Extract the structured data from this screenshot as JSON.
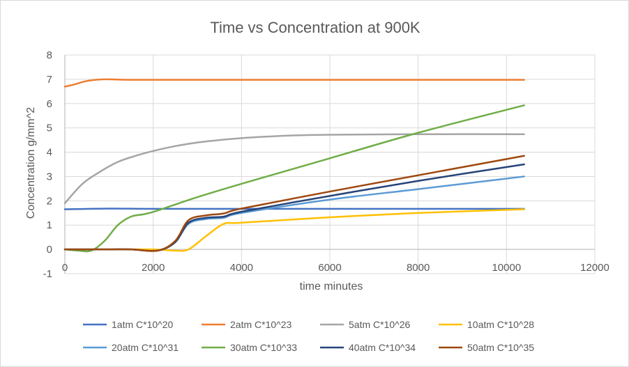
{
  "chart_data": {
    "type": "line",
    "title": "Time vs Concentration at 900K",
    "xlabel": "time minutes",
    "ylabel": "Concentration g/mm^2",
    "xlim": [
      0,
      12000
    ],
    "ylim": [
      -1,
      8
    ],
    "xticks": [
      0,
      2000,
      4000,
      6000,
      8000,
      10000,
      12000
    ],
    "yticks": [
      -1,
      0,
      1,
      2,
      3,
      4,
      5,
      6,
      7,
      8
    ],
    "grid": true,
    "legend_position": "bottom",
    "series": [
      {
        "name": "1atm C*10^20",
        "color": "#4472C4",
        "x": [
          0,
          1000,
          2000,
          4000,
          6000,
          8000,
          10400
        ],
        "y": [
          1.65,
          1.68,
          1.67,
          1.67,
          1.67,
          1.67,
          1.67
        ]
      },
      {
        "name": "2atm C*10^23",
        "color": "#ED7D31",
        "x": [
          0,
          200,
          500,
          900,
          1500,
          3000,
          6000,
          10400
        ],
        "y": [
          6.7,
          6.78,
          6.93,
          7.0,
          6.98,
          6.98,
          6.98,
          6.98
        ]
      },
      {
        "name": "5atm C*10^26",
        "color": "#A5A5A5",
        "x": [
          0,
          400,
          800,
          1200,
          1600,
          2000,
          2500,
          3000,
          3500,
          4000,
          5000,
          6000,
          8000,
          10400
        ],
        "y": [
          1.9,
          2.7,
          3.2,
          3.6,
          3.85,
          4.05,
          4.25,
          4.4,
          4.5,
          4.58,
          4.68,
          4.72,
          4.74,
          4.74
        ]
      },
      {
        "name": "10atm C*10^28",
        "color": "#FFC000",
        "x": [
          0,
          1000,
          2000,
          2500,
          2800,
          3200,
          3600,
          4000,
          6000,
          8000,
          10400
        ],
        "y": [
          0.0,
          0.0,
          0.0,
          -0.05,
          0.0,
          0.55,
          1.05,
          1.1,
          1.32,
          1.5,
          1.65
        ]
      },
      {
        "name": "20atm C*10^31",
        "color": "#5B9BD5",
        "x": [
          0,
          1000,
          1500,
          2100,
          2500,
          2800,
          3200,
          3600,
          4000,
          6000,
          8000,
          10400
        ],
        "y": [
          0.0,
          0.0,
          0.0,
          -0.05,
          0.3,
          1.05,
          1.25,
          1.3,
          1.5,
          2.05,
          2.48,
          3.0
        ]
      },
      {
        "name": "30atm C*10^33",
        "color": "#70AD47",
        "x": [
          0,
          300,
          600,
          900,
          1200,
          1500,
          1800,
          2100,
          3000,
          4000,
          6000,
          8000,
          10400
        ],
        "y": [
          0.0,
          -0.05,
          -0.05,
          0.35,
          1.0,
          1.35,
          1.45,
          1.6,
          2.15,
          2.7,
          3.75,
          4.8,
          5.93
        ]
      },
      {
        "name": "40atm C*10^34",
        "color": "#264478",
        "x": [
          0,
          1000,
          1500,
          2100,
          2500,
          2800,
          3200,
          3600,
          4000,
          6000,
          8000,
          10400
        ],
        "y": [
          0.0,
          0.0,
          0.0,
          -0.05,
          0.3,
          1.1,
          1.3,
          1.35,
          1.55,
          2.2,
          2.82,
          3.5
        ]
      },
      {
        "name": "50atm C*10^35",
        "color": "#9E480E",
        "x": [
          0,
          1000,
          1500,
          2100,
          2500,
          2800,
          3200,
          3600,
          4000,
          6000,
          8000,
          10400
        ],
        "y": [
          0.0,
          0.0,
          0.0,
          -0.05,
          0.35,
          1.2,
          1.4,
          1.48,
          1.68,
          2.38,
          3.05,
          3.85
        ]
      }
    ]
  }
}
